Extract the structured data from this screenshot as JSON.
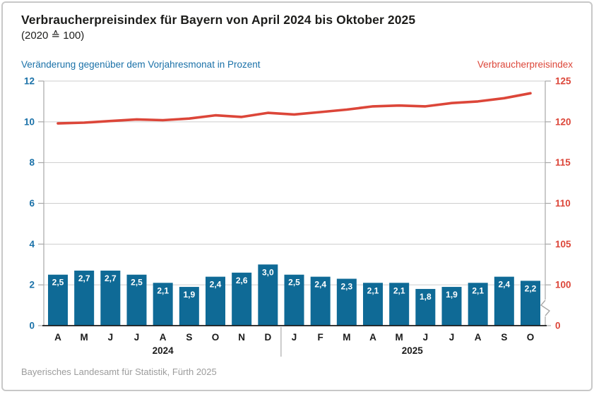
{
  "header": {
    "title": "Verbraucherpreisindex für Bayern von April 2024 bis Oktober 2025",
    "subtitle": "(2020 ≙ 100)"
  },
  "footer": {
    "source": "Bayerisches Landesamt für Statistik, Fürth 2025"
  },
  "colors": {
    "bar": "#0f6a96",
    "line": "#dc4639",
    "left_axis_text": "#1a71a8",
    "right_axis_text": "#dc4639",
    "grid": "#cdcdcd",
    "axis_line": "#a8a8a8",
    "baseline": "#1a1a1a",
    "month_text": "#1a1a1a",
    "bar_label_text": "#ffffff",
    "divider": "#9a9a9a"
  },
  "chart_data": {
    "type": "combo-bar-line",
    "title": "Verbraucherpreisindex für Bayern von April 2024 bis Oktober 2025",
    "subtitle": "(2020 ≙ 100)",
    "categories": [
      "A",
      "M",
      "J",
      "J",
      "A",
      "S",
      "O",
      "N",
      "D",
      "J",
      "F",
      "M",
      "A",
      "M",
      "J",
      "J",
      "A",
      "S",
      "O"
    ],
    "year_groups": [
      {
        "label": "2024",
        "from": 0,
        "to": 8
      },
      {
        "label": "2025",
        "from": 9,
        "to": 18
      }
    ],
    "series": [
      {
        "name": "Veränderung gegenüber dem Vorjahresmonat in Prozent",
        "type": "bar",
        "axis": "left",
        "values": [
          2.5,
          2.7,
          2.7,
          2.5,
          2.1,
          1.9,
          2.4,
          2.6,
          3.0,
          2.5,
          2.4,
          2.3,
          2.1,
          2.1,
          1.8,
          1.9,
          2.1,
          2.4,
          2.2
        ],
        "labels": [
          "2,5",
          "2,7",
          "2,7",
          "2,5",
          "2,1",
          "1,9",
          "2,4",
          "2,6",
          "3,0",
          "2,5",
          "2,4",
          "2,3",
          "2,1",
          "2,1",
          "1,8",
          "1,9",
          "2,1",
          "2,4",
          "2,2"
        ]
      },
      {
        "name": "Verbraucherpreisindex",
        "type": "line",
        "axis": "right",
        "values": [
          119.8,
          119.9,
          120.1,
          120.3,
          120.2,
          120.4,
          120.8,
          120.6,
          121.1,
          120.9,
          121.2,
          121.5,
          121.9,
          122.0,
          121.9,
          122.3,
          122.5,
          122.9,
          123.5
        ]
      }
    ],
    "left_axis": {
      "title": "Veränderung gegenüber dem Vorjahresmonat in Prozent",
      "min": 0,
      "max": 12,
      "ticks": [
        0,
        2,
        4,
        6,
        8,
        10,
        12
      ]
    },
    "right_axis": {
      "title": "Verbraucherpreisindex",
      "visible_range": [
        100,
        125
      ],
      "ticks": [
        100,
        105,
        110,
        115,
        120,
        125
      ],
      "zero_tick": 0,
      "axis_break": true,
      "maps_to_left_range": [
        2,
        12
      ]
    },
    "grid": true,
    "legend_position": "axis-titles-top"
  }
}
